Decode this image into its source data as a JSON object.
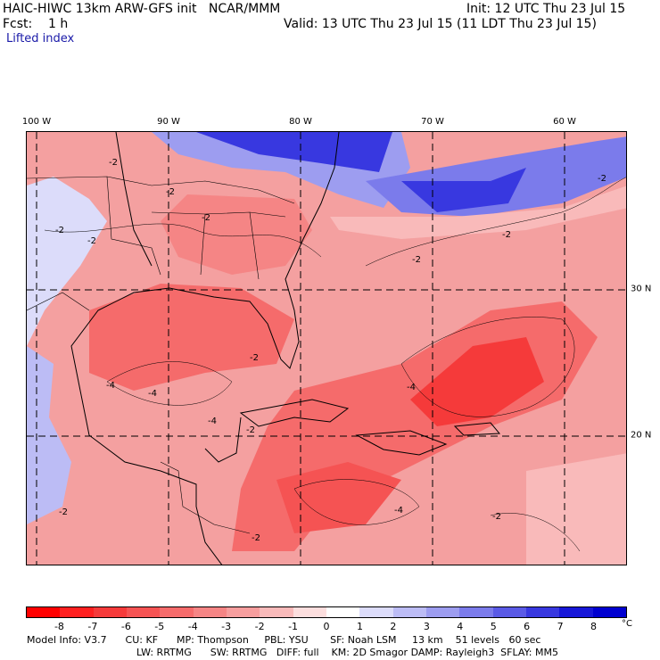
{
  "header": {
    "title": "HAIC-HIWC 13km ARW-GFS init   NCAR/MMM",
    "init": "Init: 12 UTC Thu 23 Jul 15",
    "fcst": "Fcst:    1 h",
    "valid": "Valid: 13 UTC Thu 23 Jul 15 (11 LDT Thu 23 Jul 15)",
    "field": "Lifted index"
  },
  "axes": {
    "lon_labels": [
      "100 W",
      "90 W",
      "80 W",
      "70 W",
      "60 W"
    ],
    "lat_labels": [
      "30 N",
      "20 N"
    ]
  },
  "contour_labels": [
    "-2",
    "-2",
    "-2",
    "-2",
    "-2",
    "-2",
    "-2",
    "-2",
    "-4",
    "-4",
    "-4",
    "-4",
    "-2",
    "-2",
    "-2",
    "-4",
    "-2",
    "-2"
  ],
  "colorbar": {
    "ticks": [
      "-8",
      "-7",
      "-6",
      "-5",
      "-4",
      "-3",
      "-2",
      "-1",
      "0",
      "1",
      "2",
      "3",
      "4",
      "5",
      "6",
      "7",
      "8"
    ],
    "unit": "°C",
    "colors": [
      "#ff0000",
      "#ff2020",
      "#f53a3a",
      "#f55353",
      "#f56b6b",
      "#f58585",
      "#f79e9e",
      "#f9baba",
      "#fcdede",
      "#ffffff",
      "#dcdcfa",
      "#bcbcf5",
      "#9d9df0",
      "#7b7beb",
      "#5a5ae6",
      "#3838e0",
      "#1717d8",
      "#0000d0"
    ]
  },
  "model_info": {
    "line1": "Model Info: V3.7      CU: KF      MP: Thompson     PBL: YSU       SF: Noah LSM     13 km    51 levels   60 sec",
    "line2": "LW: RRTMG      SW: RRTMG   DIFF: full    KM: 2D Smagor DAMP: Rayleigh3  SFLAY: MM5"
  }
}
